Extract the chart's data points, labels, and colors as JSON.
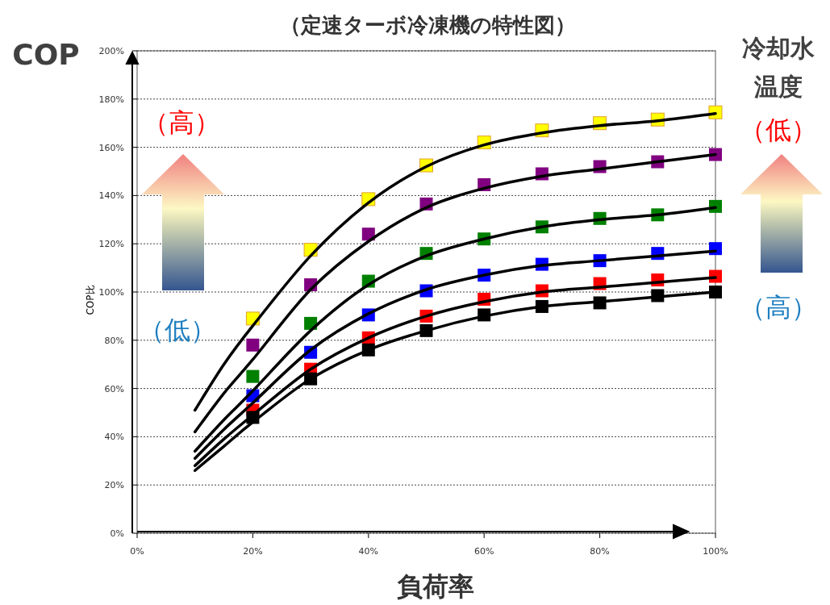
{
  "chart_data": {
    "type": "scatter",
    "title": "（定速ターボ冷凍機の特性図）",
    "xlabel": "負荷率",
    "ylabel": "COP比",
    "annotations": [
      "COP",
      "（高）",
      "（低）",
      "冷却水",
      "温度",
      "（低）",
      "（高）"
    ],
    "xlim": [
      0,
      100
    ],
    "ylim": [
      0,
      200
    ],
    "xticks": [
      {
        "value": 0,
        "label": "0%"
      },
      {
        "value": 20,
        "label": "20%"
      },
      {
        "value": 40,
        "label": "40%"
      },
      {
        "value": 60,
        "label": "60%"
      },
      {
        "value": 80,
        "label": "80%"
      },
      {
        "value": 100,
        "label": "100%"
      }
    ],
    "yticks": [
      {
        "value": 0,
        "label": "0%"
      },
      {
        "value": 20,
        "label": "20%"
      },
      {
        "value": 40,
        "label": "40%"
      },
      {
        "value": 60,
        "label": "60%"
      },
      {
        "value": 80,
        "label": "80%"
      },
      {
        "value": 100,
        "label": "100%"
      },
      {
        "value": 120,
        "label": "120%"
      },
      {
        "value": 140,
        "label": "140%"
      },
      {
        "value": 160,
        "label": "160%"
      },
      {
        "value": 180,
        "label": "180%"
      },
      {
        "value": 200,
        "label": "200%"
      }
    ],
    "grid": "y",
    "marker": "square",
    "x": [
      20,
      30,
      40,
      50,
      60,
      70,
      80,
      90,
      100
    ],
    "series": [
      {
        "type": "line",
        "color": "#000000",
        "marker": "none",
        "x": [
          10,
          15,
          20,
          30,
          40,
          50,
          60,
          70,
          80,
          90,
          100
        ],
        "values": [
          51,
          70,
          86,
          115,
          137,
          152,
          161,
          166,
          169,
          171,
          174
        ]
      },
      {
        "type": "line",
        "color": "#000000",
        "marker": "none",
        "x": [
          10,
          15,
          20,
          30,
          40,
          50,
          60,
          70,
          80,
          90,
          100
        ],
        "values": [
          42,
          58,
          72,
          101,
          121,
          135,
          143,
          148,
          151,
          154,
          157
        ]
      },
      {
        "type": "line",
        "color": "#000000",
        "marker": "none",
        "x": [
          10,
          15,
          20,
          30,
          40,
          50,
          60,
          70,
          80,
          90,
          100
        ],
        "values": [
          34,
          47,
          59,
          84,
          103,
          115,
          122,
          127,
          130,
          132,
          135
        ]
      },
      {
        "type": "line",
        "color": "#000000",
        "marker": "none",
        "x": [
          10,
          15,
          20,
          30,
          40,
          50,
          60,
          70,
          80,
          90,
          100
        ],
        "values": [
          31,
          43,
          54,
          76,
          91,
          101,
          107,
          111,
          113,
          115,
          117
        ]
      },
      {
        "type": "line",
        "color": "#000000",
        "marker": "none",
        "x": [
          10,
          15,
          20,
          30,
          40,
          50,
          60,
          70,
          80,
          90,
          100
        ],
        "values": [
          28,
          39,
          49,
          68,
          81,
          90,
          96,
          100,
          102,
          104,
          106
        ]
      },
      {
        "type": "line",
        "color": "#000000",
        "marker": "none",
        "x": [
          10,
          15,
          20,
          30,
          40,
          50,
          60,
          70,
          80,
          90,
          100
        ],
        "values": [
          26,
          36,
          46,
          64,
          76,
          84,
          90,
          94,
          96,
          98,
          100
        ]
      },
      {
        "color": "#ffff00",
        "values": [
          89,
          117.5,
          138.5,
          152.5,
          162,
          167,
          170,
          171.5,
          174.5
        ]
      },
      {
        "color": "#800080",
        "values": [
          78,
          103,
          124,
          136.5,
          144.5,
          149,
          152,
          154,
          157
        ]
      },
      {
        "color": "#008000",
        "values": [
          65,
          87,
          104.5,
          116,
          122,
          127,
          130.5,
          132,
          135.5
        ]
      },
      {
        "color": "#0000ff",
        "values": [
          57,
          75,
          90.5,
          100.5,
          107,
          111.5,
          113,
          116,
          118
        ]
      },
      {
        "color": "#ff0000",
        "values": [
          51,
          68,
          81,
          90,
          97,
          100.5,
          103.5,
          105,
          106.5
        ]
      },
      {
        "color": "#000000",
        "values": [
          48,
          64,
          76,
          84,
          90.5,
          94,
          95.5,
          98.5,
          100
        ]
      }
    ]
  }
}
